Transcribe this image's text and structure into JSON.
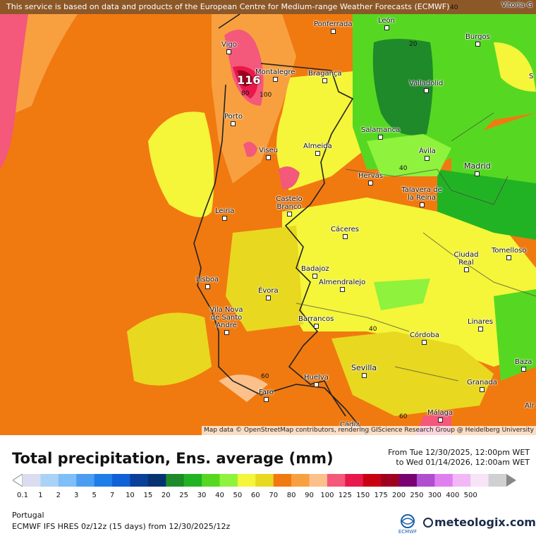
{
  "disclaimer": "This service is based on data and products of the European Centre for Medium-range Weather Forecasts (ECMWF)",
  "attribution": "Map data © OpenStreetMap contributors, rendering GIScience Research Group @ Heidelberg University",
  "title": "Total precipitation, Ens. average (mm)",
  "date_from": "From Tue 12/30/2025, 12:00pm WET",
  "date_to": "to Wed 01/14/2026, 12:00am WET",
  "region": "Portugal",
  "model": "ECMWF IFS HRES 0z/12z (15 days) from 12/30/2025/12z",
  "logo_ecmwf": "ECMWF",
  "logo_meteologix": "meteologix.com",
  "max_value": "116",
  "map_labels": {
    "top_right": "Vitoria-G",
    "right_edge_1": "S",
    "right_edge_2": "Alr"
  },
  "cities": [
    {
      "name": "Ponferrada"
    },
    {
      "name": "León"
    },
    {
      "name": "Burgos"
    },
    {
      "name": "Vigo"
    },
    {
      "name": "Montalegre"
    },
    {
      "name": "Bragança"
    },
    {
      "name": "Valladolid"
    },
    {
      "name": "Porto"
    },
    {
      "name": "Salamanca"
    },
    {
      "name": "Viseu"
    },
    {
      "name": "Almeida"
    },
    {
      "name": "Ávila"
    },
    {
      "name": "Madrid"
    },
    {
      "name": "Hervás"
    },
    {
      "name": "Talavera de la Reina"
    },
    {
      "name": "Castelo Branco"
    },
    {
      "name": "Leiria"
    },
    {
      "name": "Cáceres"
    },
    {
      "name": "Ciudad Real"
    },
    {
      "name": "Tomelloso"
    },
    {
      "name": "Lisboa"
    },
    {
      "name": "Badajoz"
    },
    {
      "name": "Almendralejo"
    },
    {
      "name": "Évora"
    },
    {
      "name": "Vila Nova de Santo André"
    },
    {
      "name": "Barrancos"
    },
    {
      "name": "Linares"
    },
    {
      "name": "Córdoba"
    },
    {
      "name": "Baza"
    },
    {
      "name": "Sevilla"
    },
    {
      "name": "Huelva"
    },
    {
      "name": "Granada"
    },
    {
      "name": "Faro"
    },
    {
      "name": "Málaga"
    },
    {
      "name": "Cádiz"
    }
  ],
  "contour_labels": [
    "20",
    "40",
    "40",
    "40",
    "60",
    "60",
    "80",
    "100"
  ],
  "legend": {
    "values": [
      "0.1",
      "1",
      "2",
      "3",
      "5",
      "7",
      "10",
      "15",
      "20",
      "25",
      "30",
      "40",
      "50",
      "60",
      "70",
      "80",
      "90",
      "100",
      "125",
      "150",
      "175",
      "200",
      "250",
      "300",
      "400",
      "500"
    ],
    "colors": [
      "#dcdcf0",
      "#aad2f7",
      "#7fbef7",
      "#4c9df2",
      "#1f7de8",
      "#1060d8",
      "#0a3f9a",
      "#063270",
      "#1f8a2a",
      "#22b324",
      "#56d822",
      "#8ff23c",
      "#f5f53a",
      "#e8d820",
      "#f07a10",
      "#f8a040",
      "#fcc08a",
      "#f4587a",
      "#e8184a",
      "#c80010",
      "#a00020",
      "#780070",
      "#b04ed0",
      "#e080f0",
      "#f2b8f5",
      "#f8e4f8",
      "#d0d0d0"
    ]
  }
}
